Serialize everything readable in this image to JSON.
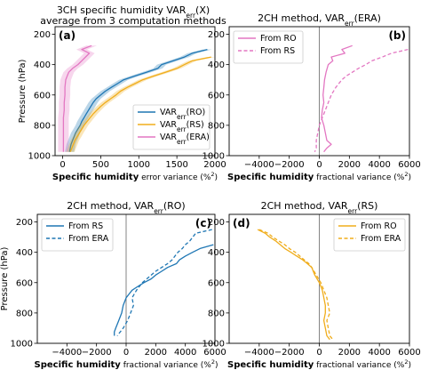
{
  "figure": {
    "y_axis_label": "Pressure (hPa)"
  },
  "chart_data": [
    {
      "id": "a",
      "type": "line",
      "panel_label": "(a)",
      "title": "3CH specific humidity VAR_err(X)",
      "title_parts": [
        "3CH specific humidity VAR",
        "err",
        "(X)"
      ],
      "subtitle": "average from 3 computation methods",
      "xlabel_parts": [
        "Specific humidity",
        " error variance (%",
        "2",
        ")"
      ],
      "ylabel": "Pressure (hPa)",
      "xlim": [
        -100,
        2000
      ],
      "ylim": [
        1000,
        150
      ],
      "xticks": [
        0,
        500,
        1000,
        1500,
        2000
      ],
      "yticks": [
        200,
        400,
        600,
        800,
        1000
      ],
      "y_inverted": true,
      "vline_x": null,
      "legend_position": "center-right",
      "series": [
        {
          "name": "VAR_err(RO)",
          "legend_parts": [
            "VAR",
            "err",
            "(RO)"
          ],
          "color": "#1f77b4",
          "style": "solid",
          "band": true,
          "band_halfwidth": 60,
          "p": [
            300,
            325,
            350,
            375,
            400,
            425,
            450,
            475,
            500,
            525,
            550,
            575,
            600,
            625,
            650,
            675,
            700,
            725,
            750,
            775,
            800,
            825,
            850,
            875,
            900,
            925,
            950,
            975
          ],
          "x": [
            1900,
            1700,
            1600,
            1450,
            1300,
            1250,
            1100,
            950,
            800,
            720,
            640,
            560,
            500,
            440,
            400,
            370,
            340,
            310,
            280,
            250,
            230,
            200,
            170,
            150,
            130,
            110,
            100,
            90
          ]
        },
        {
          "name": "VAR_err(RS)",
          "legend_parts": [
            "VAR",
            "err",
            "(RS)"
          ],
          "color": "#f0ad1c",
          "style": "solid",
          "band": true,
          "band_halfwidth": 55,
          "p": [
            350,
            375,
            400,
            425,
            450,
            475,
            500,
            525,
            550,
            575,
            600,
            625,
            650,
            675,
            700,
            725,
            750,
            775,
            800,
            825,
            850,
            875,
            900,
            925,
            950,
            975
          ],
          "x": [
            1950,
            1700,
            1600,
            1500,
            1350,
            1200,
            1050,
            950,
            850,
            760,
            700,
            630,
            560,
            500,
            450,
            400,
            360,
            320,
            280,
            250,
            220,
            190,
            160,
            140,
            120,
            100
          ]
        },
        {
          "name": "VAR_err(ERA)",
          "legend_parts": [
            "VAR",
            "err",
            "(ERA)"
          ],
          "color": "#e377c2",
          "style": "solid",
          "band": true,
          "band_halfwidth": 70,
          "p": [
            275,
            300,
            325,
            350,
            375,
            400,
            425,
            450,
            475,
            500,
            550,
            600,
            650,
            700,
            750,
            800,
            850,
            900,
            950,
            975
          ],
          "x": [
            380,
            250,
            350,
            300,
            250,
            200,
            130,
            80,
            60,
            40,
            30,
            30,
            20,
            20,
            10,
            10,
            10,
            10,
            10,
            10
          ]
        }
      ]
    },
    {
      "id": "b",
      "type": "line",
      "panel_label": "(b)",
      "title": "2CH method, VAR_err(ERA)",
      "title_parts": [
        "2CH method, VAR",
        "err",
        "(ERA)"
      ],
      "xlabel_parts": [
        "Specific humidity",
        "  fractional variance (%",
        "2",
        ")"
      ],
      "xlim": [
        -6000,
        6000
      ],
      "ylim": [
        1000,
        150
      ],
      "xticks": [
        -4000,
        -2000,
        0,
        2000,
        4000,
        6000
      ],
      "yticks": [
        200,
        400,
        600,
        800,
        1000
      ],
      "y_inverted": true,
      "vline_x": 0,
      "legend_position": "top-left",
      "series": [
        {
          "name": "From RO",
          "color": "#e377c2",
          "style": "solid",
          "p": [
            275,
            300,
            325,
            350,
            375,
            400,
            450,
            500,
            550,
            600,
            650,
            700,
            750,
            800,
            850,
            900,
            925,
            950,
            975
          ],
          "x": [
            2200,
            1500,
            1700,
            800,
            900,
            600,
            450,
            350,
            300,
            250,
            300,
            200,
            150,
            300,
            400,
            500,
            800,
            500,
            300
          ]
        },
        {
          "name": "From RS",
          "color": "#e377c2",
          "style": "dashed",
          "p": [
            300,
            325,
            350,
            375,
            400,
            425,
            450,
            475,
            500,
            550,
            600,
            650,
            700,
            750,
            800,
            850,
            900,
            950,
            975
          ],
          "x": [
            5900,
            4800,
            4200,
            3500,
            3100,
            2600,
            2200,
            1800,
            1500,
            1100,
            800,
            600,
            400,
            200,
            0,
            -100,
            -200,
            -200,
            -300
          ]
        }
      ]
    },
    {
      "id": "c",
      "type": "line",
      "panel_label": "(c)",
      "title": "2CH method, VAR_err(RO)",
      "title_parts": [
        "2CH method, VAR",
        "err",
        "(RO)"
      ],
      "xlabel_parts": [
        "Specific humidity",
        "  fractional variance (%",
        "2",
        ")"
      ],
      "ylabel": "Pressure (hPa)",
      "xlim": [
        -6000,
        6000
      ],
      "ylim": [
        1000,
        150
      ],
      "xticks": [
        -4000,
        -2000,
        0,
        2000,
        4000,
        6000
      ],
      "yticks": [
        200,
        400,
        600,
        800,
        1000
      ],
      "y_inverted": true,
      "vline_x": 0,
      "legend_position": "top-left",
      "series": [
        {
          "name": "From RS",
          "color": "#1f77b4",
          "style": "solid",
          "p": [
            350,
            375,
            400,
            425,
            450,
            475,
            500,
            525,
            550,
            575,
            600,
            625,
            650,
            675,
            700,
            750,
            800,
            850,
            900,
            925,
            950
          ],
          "x": [
            5900,
            5000,
            4500,
            4000,
            3600,
            3400,
            2800,
            2400,
            2000,
            1700,
            1200,
            800,
            400,
            200,
            0,
            -200,
            -300,
            -500,
            -700,
            -800,
            -800
          ]
        },
        {
          "name": "From ERA",
          "color": "#1f77b4",
          "style": "dashed",
          "p": [
            250,
            275,
            300,
            325,
            350,
            375,
            400,
            425,
            450,
            475,
            500,
            525,
            550,
            575,
            600,
            650,
            700,
            750,
            800,
            850,
            900,
            950
          ],
          "x": [
            5800,
            4700,
            4500,
            4300,
            4000,
            3800,
            3500,
            3300,
            3100,
            2800,
            2400,
            2000,
            1700,
            1400,
            1100,
            700,
            400,
            500,
            300,
            100,
            -200,
            -600
          ]
        }
      ]
    },
    {
      "id": "d",
      "type": "line",
      "panel_label": "(d)",
      "title": "2CH method, VAR_err(RS)",
      "title_parts": [
        "2CH method, VAR",
        "err",
        "(RS)"
      ],
      "xlabel_parts": [
        "Specific humidity",
        "  fractional variance (%",
        "2",
        ")"
      ],
      "xlim": [
        -6000,
        6000
      ],
      "ylim": [
        1000,
        150
      ],
      "xticks": [
        -4000,
        -2000,
        0,
        2000,
        4000,
        6000
      ],
      "yticks": [
        200,
        400,
        600,
        800,
        1000
      ],
      "y_inverted": true,
      "vline_x": 0,
      "legend_position": "top-right",
      "series": [
        {
          "name": "From RO",
          "color": "#f0ad1c",
          "style": "solid",
          "p": [
            250,
            275,
            300,
            325,
            350,
            375,
            400,
            425,
            450,
            475,
            500,
            550,
            600,
            650,
            700,
            750,
            800,
            850,
            900,
            950,
            975
          ],
          "x": [
            -4100,
            -3600,
            -3300,
            -2900,
            -2600,
            -2300,
            -1900,
            -1500,
            -1100,
            -800,
            -500,
            -300,
            0,
            200,
            300,
            400,
            400,
            300,
            400,
            500,
            700
          ]
        },
        {
          "name": "From ERA",
          "color": "#f0ad1c",
          "style": "dashed",
          "p": [
            250,
            275,
            300,
            325,
            350,
            375,
            400,
            425,
            450,
            475,
            500,
            550,
            600,
            650,
            700,
            750,
            800,
            850,
            900,
            950,
            975
          ],
          "x": [
            -4000,
            -3400,
            -3100,
            -2700,
            -2300,
            -2000,
            -1600,
            -1300,
            -1000,
            -700,
            -500,
            -200,
            100,
            300,
            500,
            600,
            700,
            500,
            600,
            700,
            900
          ]
        }
      ]
    }
  ]
}
